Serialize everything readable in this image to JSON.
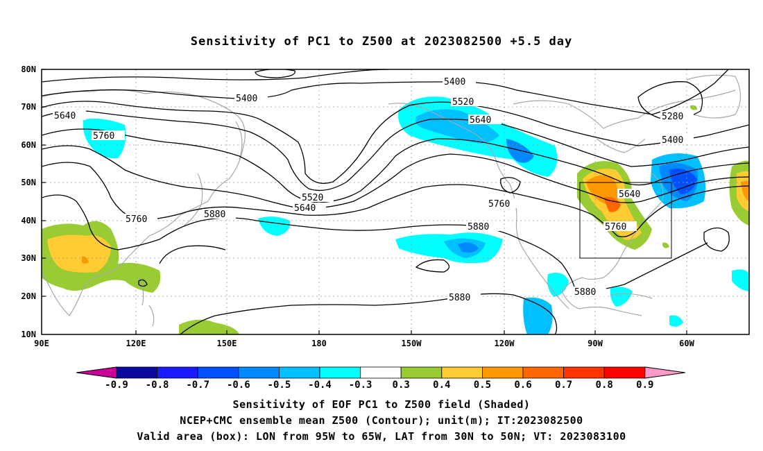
{
  "title": "Sensitivity of PC1 to Z500 at 2023082500 +5.5 day",
  "map": {
    "lat_labels": [
      "80N",
      "70N",
      "60N",
      "50N",
      "40N",
      "30N",
      "20N",
      "10N"
    ],
    "lon_labels": [
      "90E",
      "120E",
      "150E",
      "180",
      "150W",
      "120W",
      "90W",
      "60W"
    ],
    "contour_labels": [
      "5400",
      "5400",
      "5520",
      "5640",
      "5640",
      "5760",
      "5280",
      "5400",
      "5520",
      "5640",
      "5760",
      "5640",
      "5760",
      "5880",
      "5880",
      "5760",
      "5880",
      "5880"
    ],
    "valid_box": {
      "lon_min": "95W",
      "lon_max": "65W",
      "lat_min": "30N",
      "lat_max": "50N"
    }
  },
  "colorbar": {
    "labels": [
      "-0.9",
      "-0.8",
      "-0.7",
      "-0.6",
      "-0.5",
      "-0.4",
      "-0.3",
      "0.3",
      "0.4",
      "0.5",
      "0.6",
      "0.7",
      "0.8",
      "0.9"
    ],
    "colors": [
      "#0a0aa0",
      "#1a1aff",
      "#0050ff",
      "#0088ff",
      "#00c0ff",
      "#00ffff",
      "#ffffff",
      "#99cc33",
      "#ffcc33",
      "#ff9900",
      "#ff6600",
      "#ff3300",
      "#ff0000"
    ],
    "neg_end_color": "#cc0099",
    "pos_end_color": "#ff99cc"
  },
  "captions": [
    "Sensitivity of EOF PC1 to Z500 field (Shaded)",
    "NCEP+CMC ensemble mean Z500 (Contour); unit(m); IT:2023082500",
    "Valid area (box): LON from 95W to 65W, LAT from 30N to 50N; VT: 2023083100"
  ]
}
